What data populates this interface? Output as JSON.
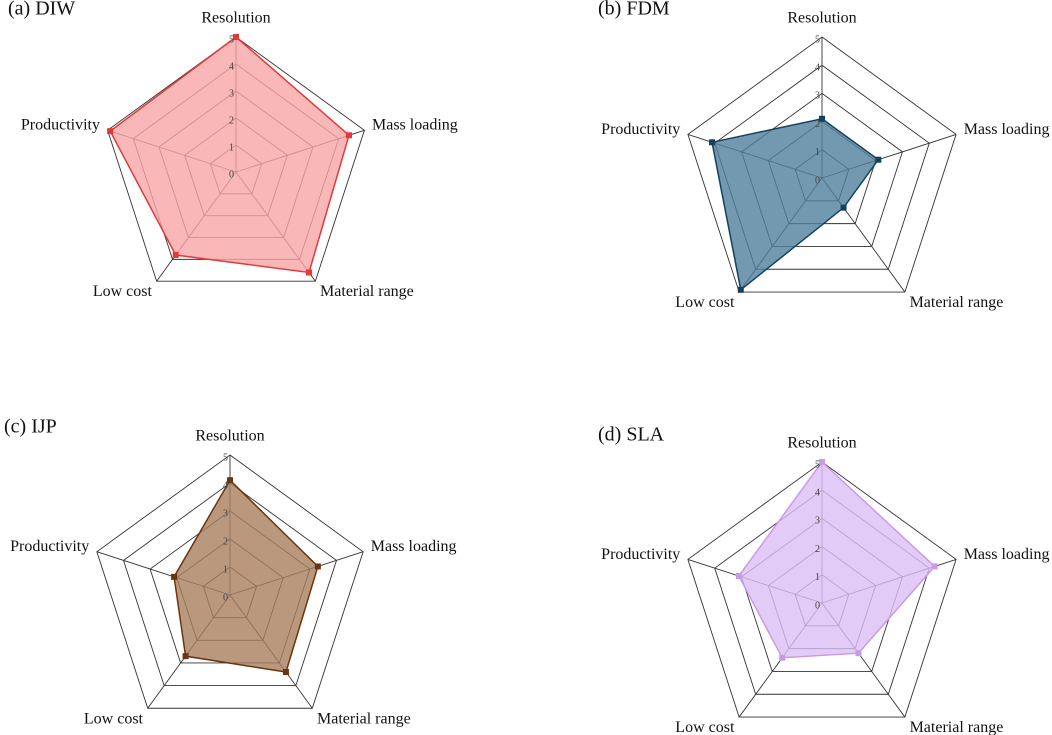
{
  "chart_data": [
    {
      "type": "radar",
      "title": "(a) DIW",
      "categories": [
        "Resolution",
        "Mass loading",
        "Material range",
        "Low cost",
        "Productivity"
      ],
      "values": [
        5,
        4.4,
        4.6,
        3.8,
        4.9
      ],
      "color": "#e03a3a",
      "fill": "#f7a5a5",
      "rlim": [
        0,
        5
      ],
      "rticks": [
        0,
        1,
        2,
        3,
        4,
        5
      ]
    },
    {
      "type": "radar",
      "title": "(b) FDM",
      "categories": [
        "Resolution",
        "Mass loading",
        "Material range",
        "Low cost",
        "Productivity"
      ],
      "values": [
        2.1,
        2.1,
        1.3,
        4.9,
        4.1
      ],
      "color": "#14425e",
      "fill": "#4f7f9c",
      "rlim": [
        0,
        5
      ],
      "rticks": [
        0,
        1,
        2,
        3,
        4,
        5
      ]
    },
    {
      "type": "radar",
      "title": "(c) IJP",
      "categories": [
        "Resolution",
        "Mass loading",
        "Material range",
        "Low cost",
        "Productivity"
      ],
      "values": [
        4.1,
        3.3,
        3.4,
        2.7,
        2.1
      ],
      "color": "#6b3510",
      "fill": "#a87e5e",
      "rlim": [
        0,
        5
      ],
      "rticks": [
        0,
        1,
        2,
        3,
        4,
        5
      ]
    },
    {
      "type": "radar",
      "title": "(d) SLA",
      "categories": [
        "Resolution",
        "Mass loading",
        "Material range",
        "Low cost",
        "Productivity"
      ],
      "values": [
        5,
        4.2,
        2.2,
        2.4,
        3.1
      ],
      "color": "#c99ae8",
      "fill": "#dcbef5",
      "rlim": [
        0,
        5
      ],
      "rticks": [
        0,
        1,
        2,
        3,
        4,
        5
      ]
    }
  ]
}
